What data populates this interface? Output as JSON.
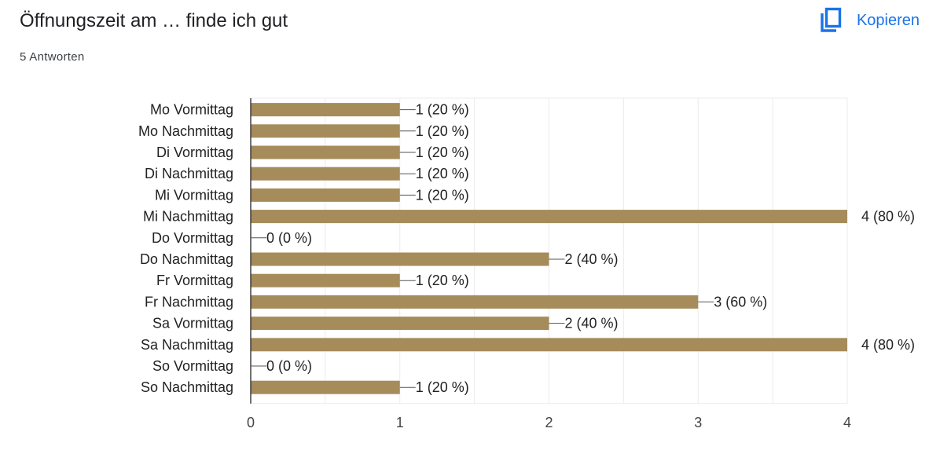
{
  "header": {
    "title": "Öffnungszeit am … finde ich gut",
    "responses": "5 Antworten",
    "copy_label": "Kopieren",
    "copy_icon": "copy-icon"
  },
  "colors": {
    "bar": "#a68c5a",
    "accent": "#1a73e8",
    "grid": "#ebebeb",
    "axis": "#333333"
  },
  "chart_data": {
    "type": "bar",
    "orientation": "horizontal",
    "categories": [
      "Mo Vormittag",
      "Mo Nachmittag",
      "Di Vormittag",
      "Di Nachmittag",
      "Mi Vormittag",
      "Mi Nachmittag",
      "Do Vormittag",
      "Do Nachmittag",
      "Fr Vormittag",
      "Fr Nachmittag",
      "Sa Vormittag",
      "Sa Nachmittag",
      "So Vormittag",
      "So Nachmittag"
    ],
    "values": [
      1,
      1,
      1,
      1,
      1,
      4,
      0,
      2,
      1,
      3,
      2,
      4,
      0,
      1
    ],
    "data_labels": [
      "1 (20 %)",
      "1 (20 %)",
      "1 (20 %)",
      "1 (20 %)",
      "1 (20 %)",
      "4 (80 %)",
      "0 (0 %)",
      "2 (40 %)",
      "1 (20 %)",
      "3 (60 %)",
      "2 (40 %)",
      "4 (80 %)",
      "0 (0 %)",
      "1 (20 %)"
    ],
    "xlim": [
      0,
      4
    ],
    "xticks": [
      "0",
      "1",
      "2",
      "3",
      "4"
    ],
    "grid": true,
    "legend": "none"
  }
}
